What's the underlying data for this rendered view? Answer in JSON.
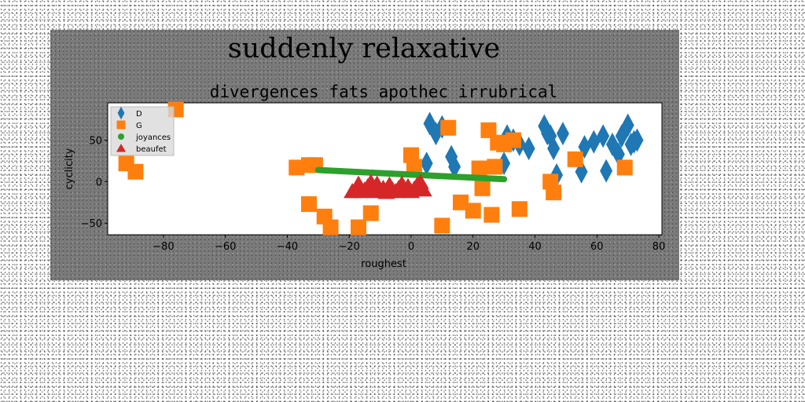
{
  "chart_data": {
    "suptitle": "suddenly relaxative",
    "title": "divergences fats apothec irrubrical",
    "xlabel": "roughest",
    "ylabel": "cyclicity",
    "xlim": [
      -98,
      81
    ],
    "ylim": [
      -64,
      95
    ],
    "xticks": [
      -80,
      -60,
      -40,
      -20,
      0,
      20,
      40,
      60,
      80
    ],
    "yticks": [
      -50,
      0,
      50
    ],
    "grid": false,
    "legend_position": "upper-left",
    "series": [
      {
        "name": "D",
        "marker": "diamond",
        "color": "#1f77b4",
        "points": [
          [
            6,
            70
          ],
          [
            8,
            58
          ],
          [
            10,
            66
          ],
          [
            5,
            22
          ],
          [
            13,
            30
          ],
          [
            14,
            18
          ],
          [
            30,
            22
          ],
          [
            31,
            55
          ],
          [
            33,
            50
          ],
          [
            35,
            45
          ],
          [
            38,
            40
          ],
          [
            43,
            67
          ],
          [
            44,
            58
          ],
          [
            45,
            55
          ],
          [
            46,
            40
          ],
          [
            47,
            8
          ],
          [
            49,
            58
          ],
          [
            55,
            12
          ],
          [
            56,
            42
          ],
          [
            59,
            48
          ],
          [
            62,
            55
          ],
          [
            63,
            13
          ],
          [
            65,
            45
          ],
          [
            67,
            33
          ],
          [
            68,
            55
          ],
          [
            70,
            68
          ],
          [
            71,
            45
          ],
          [
            72,
            48
          ],
          [
            73,
            50
          ]
        ]
      },
      {
        "name": "G",
        "marker": "square",
        "color": "#ff7f0e",
        "points": [
          [
            -76,
            87
          ],
          [
            -92,
            22
          ],
          [
            -89,
            12
          ],
          [
            -37,
            17
          ],
          [
            -33,
            20
          ],
          [
            -31,
            20
          ],
          [
            -33,
            -27
          ],
          [
            -28,
            -42
          ],
          [
            -26,
            -55
          ],
          [
            -17,
            -55
          ],
          [
            -13,
            -38
          ],
          [
            0,
            32
          ],
          [
            1,
            18
          ],
          [
            10,
            -53
          ],
          [
            12,
            65
          ],
          [
            16,
            -25
          ],
          [
            20,
            -35
          ],
          [
            22,
            16
          ],
          [
            23,
            -8
          ],
          [
            25,
            62
          ],
          [
            26,
            -40
          ],
          [
            27,
            18
          ],
          [
            28,
            47
          ],
          [
            30,
            45
          ],
          [
            33,
            50
          ],
          [
            35,
            -33
          ],
          [
            45,
            0
          ],
          [
            46,
            -13
          ],
          [
            53,
            27
          ],
          [
            69,
            17
          ]
        ]
      },
      {
        "name": "joyances",
        "marker": "circle",
        "color": "#2ca02c",
        "line": [
          -30,
          14,
          30,
          3
        ],
        "count": 130
      },
      {
        "name": "beaufet",
        "marker": "triangle",
        "color": "#d62728",
        "points": [
          [
            -17,
            -3
          ],
          [
            -17,
            -12
          ],
          [
            -15,
            -10
          ],
          [
            -14,
            -6
          ],
          [
            -12,
            -12
          ],
          [
            -11,
            -3
          ],
          [
            -10,
            -11
          ],
          [
            -9,
            -8
          ],
          [
            -8,
            -13
          ],
          [
            -7,
            -4
          ],
          [
            -6,
            -10
          ],
          [
            -5,
            -12
          ],
          [
            -4,
            -8
          ],
          [
            -3,
            -3
          ],
          [
            -2,
            -11
          ],
          [
            -1,
            -6
          ],
          [
            0,
            -12
          ],
          [
            1,
            -9
          ],
          [
            2,
            -4
          ],
          [
            3,
            -1
          ],
          [
            4,
            -10
          ],
          [
            -19,
            -12
          ],
          [
            -13,
            -1
          ]
        ]
      }
    ]
  }
}
